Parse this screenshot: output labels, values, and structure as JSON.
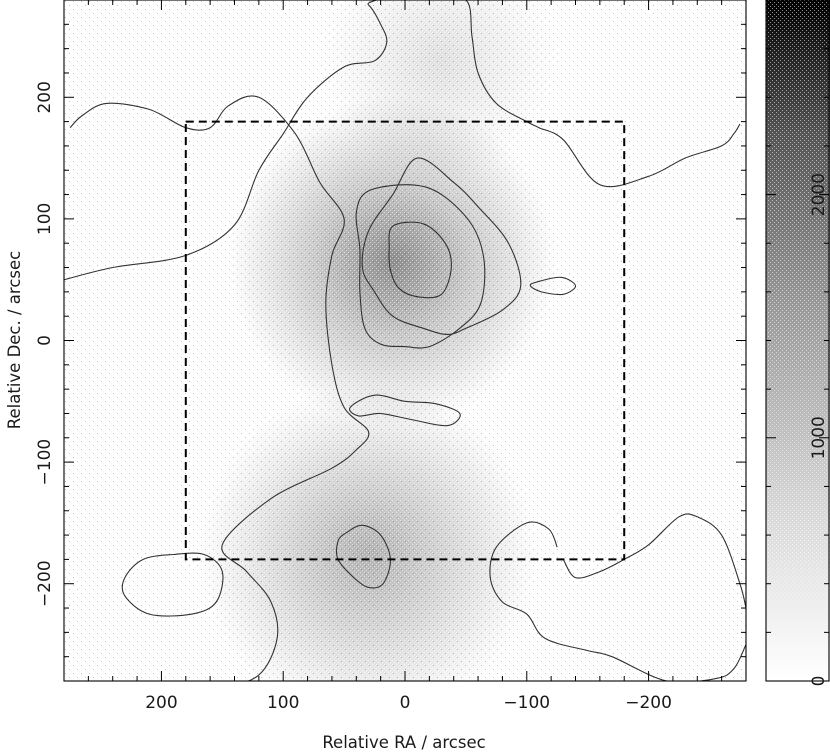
{
  "chart_data": {
    "type": "heatmap",
    "title": "",
    "xlabel": "Relative RA / arcsec",
    "ylabel": "Relative Dec. / arcsec",
    "xlim": [
      280,
      -280
    ],
    "ylim": [
      -280,
      280
    ],
    "x_ticks": [
      200,
      100,
      0,
      -100,
      -200
    ],
    "x_tick_labels": [
      "200",
      "100",
      "0",
      "−100",
      "−200"
    ],
    "y_ticks": [
      200,
      100,
      0,
      -100,
      -200
    ],
    "y_tick_labels": [
      "200",
      "100",
      "0",
      "−100",
      "−200"
    ],
    "colorbar": {
      "range": [
        0,
        2800
      ],
      "ticks": [
        0,
        1000,
        2000
      ],
      "tick_labels": [
        "0",
        "1000",
        "2000"
      ],
      "colormap": "grey-stipple",
      "low_color": "#ffffff",
      "high_color": "#000000"
    },
    "peaks": [
      {
        "x": 10,
        "y": 65,
        "value": 1900
      },
      {
        "x": 30,
        "y": -175,
        "value": 1200
      }
    ],
    "contours": [
      {
        "level": "outer",
        "points": [
          [
            280,
            -280
          ],
          [
            220,
            -282
          ],
          [
            150,
            -283
          ],
          [
            120,
            -275
          ],
          [
            105,
            -245
          ],
          [
            110,
            -215
          ],
          [
            130,
            -190
          ],
          [
            150,
            -168
          ],
          [
            110,
            -130
          ],
          [
            60,
            -105
          ],
          [
            40,
            -90
          ],
          [
            30,
            -75
          ],
          [
            50,
            -55
          ],
          [
            60,
            -20
          ],
          [
            65,
            30
          ],
          [
            60,
            70
          ],
          [
            50,
            100
          ],
          [
            70,
            130
          ],
          [
            90,
            170
          ],
          [
            120,
            200
          ],
          [
            145,
            193
          ],
          [
            160,
            175
          ],
          [
            180,
            175
          ],
          [
            210,
            190
          ],
          [
            245,
            195
          ],
          [
            265,
            185
          ],
          [
            275,
            175
          ]
        ],
        "closed": false
      },
      {
        "level": "outer",
        "points": [
          [
            280,
            50
          ],
          [
            240,
            60
          ],
          [
            180,
            70
          ],
          [
            140,
            95
          ],
          [
            120,
            140
          ],
          [
            100,
            170
          ],
          [
            80,
            200
          ],
          [
            50,
            225
          ],
          [
            25,
            230
          ],
          [
            15,
            245
          ],
          [
            20,
            260
          ],
          [
            30,
            276
          ],
          [
            45,
            282
          ],
          [
            280,
            282
          ]
        ],
        "closed": false
      },
      {
        "level": "outer",
        "points": [
          [
            -20,
            282
          ],
          [
            -50,
            280
          ],
          [
            -55,
            250
          ],
          [
            -60,
            220
          ],
          [
            -75,
            195
          ],
          [
            -100,
            180
          ],
          [
            -110,
            175
          ],
          [
            -130,
            165
          ],
          [
            -160,
            128
          ],
          [
            -200,
            135
          ],
          [
            -230,
            150
          ],
          [
            -260,
            160
          ],
          [
            -270,
            170
          ],
          [
            -275,
            178
          ]
        ],
        "closed": false
      },
      {
        "level": "outer",
        "points": [
          [
            -50,
            10
          ],
          [
            -80,
            25
          ],
          [
            -95,
            45
          ],
          [
            -85,
            80
          ],
          [
            -60,
            110
          ],
          [
            -40,
            130
          ],
          [
            -10,
            150
          ],
          [
            10,
            120
          ],
          [
            30,
            90
          ],
          [
            35,
            60
          ],
          [
            25,
            40
          ],
          [
            10,
            20
          ],
          [
            -15,
            10
          ],
          [
            -35,
            5
          ]
        ],
        "closed": true
      },
      {
        "level": "outer",
        "points": [
          [
            45,
            -55
          ],
          [
            25,
            -45
          ],
          [
            0,
            -50
          ],
          [
            -25,
            -52
          ],
          [
            -45,
            -60
          ],
          [
            -35,
            -70
          ],
          [
            -5,
            -65
          ],
          [
            20,
            -60
          ],
          [
            38,
            -62
          ]
        ],
        "closed": true
      },
      {
        "level": "outer",
        "points": [
          [
            -108,
            48
          ],
          [
            -128,
            52
          ],
          [
            -140,
            45
          ],
          [
            -130,
            38
          ],
          [
            -112,
            40
          ],
          [
            -103,
            45
          ]
        ],
        "closed": true
      },
      {
        "level": "outer",
        "points": [
          [
            230,
            -210
          ],
          [
            210,
            -225
          ],
          [
            175,
            -225
          ],
          [
            155,
            -215
          ],
          [
            150,
            -190
          ],
          [
            165,
            -176
          ],
          [
            190,
            -176
          ],
          [
            215,
            -180
          ],
          [
            230,
            -195
          ]
        ],
        "closed": true
      },
      {
        "level": "outer",
        "points": [
          [
            -130,
            -180
          ],
          [
            -140,
            -195
          ],
          [
            -160,
            -190
          ],
          [
            -180,
            -180
          ],
          [
            -200,
            -168
          ],
          [
            -225,
            -145
          ],
          [
            -240,
            -145
          ],
          [
            -260,
            -160
          ],
          [
            -275,
            -200
          ],
          [
            -280,
            -220
          ]
        ],
        "closed": false
      },
      {
        "level": "outer",
        "points": [
          [
            -280,
            -250
          ],
          [
            -270,
            -270
          ],
          [
            -255,
            -278
          ],
          [
            -215,
            -280
          ],
          [
            -170,
            -260
          ],
          [
            -150,
            -255
          ],
          [
            -115,
            -245
          ],
          [
            -100,
            -225
          ],
          [
            -80,
            -215
          ],
          [
            -70,
            -195
          ],
          [
            -75,
            -170
          ],
          [
            -100,
            -150
          ],
          [
            -118,
            -155
          ],
          [
            -125,
            -170
          ]
        ],
        "closed": false
      },
      {
        "level": "mid",
        "points": [
          [
            30,
            123
          ],
          [
            -5,
            128
          ],
          [
            -30,
            120
          ],
          [
            -55,
            95
          ],
          [
            -65,
            65
          ],
          [
            -62,
            30
          ],
          [
            -45,
            10
          ],
          [
            -20,
            -5
          ],
          [
            0,
            -5
          ],
          [
            20,
            -3
          ],
          [
            33,
            10
          ],
          [
            37,
            40
          ],
          [
            37,
            75
          ],
          [
            40,
            105
          ]
        ],
        "closed": true
      },
      {
        "level": "inner",
        "points": [
          [
            10,
            94
          ],
          [
            -15,
            96
          ],
          [
            -33,
            80
          ],
          [
            -38,
            60
          ],
          [
            -30,
            38
          ],
          [
            -10,
            36
          ],
          [
            5,
            43
          ],
          [
            12,
            58
          ],
          [
            13,
            75
          ]
        ],
        "closed": true
      },
      {
        "level": "inner",
        "points": [
          [
            48,
            -158
          ],
          [
            35,
            -152
          ],
          [
            20,
            -160
          ],
          [
            12,
            -180
          ],
          [
            18,
            -200
          ],
          [
            30,
            -203
          ],
          [
            42,
            -195
          ],
          [
            55,
            -180
          ],
          [
            55,
            -165
          ]
        ],
        "closed": true
      }
    ],
    "dashed_box": {
      "x": [
        180,
        -180
      ],
      "y": [
        180,
        -180
      ]
    }
  }
}
